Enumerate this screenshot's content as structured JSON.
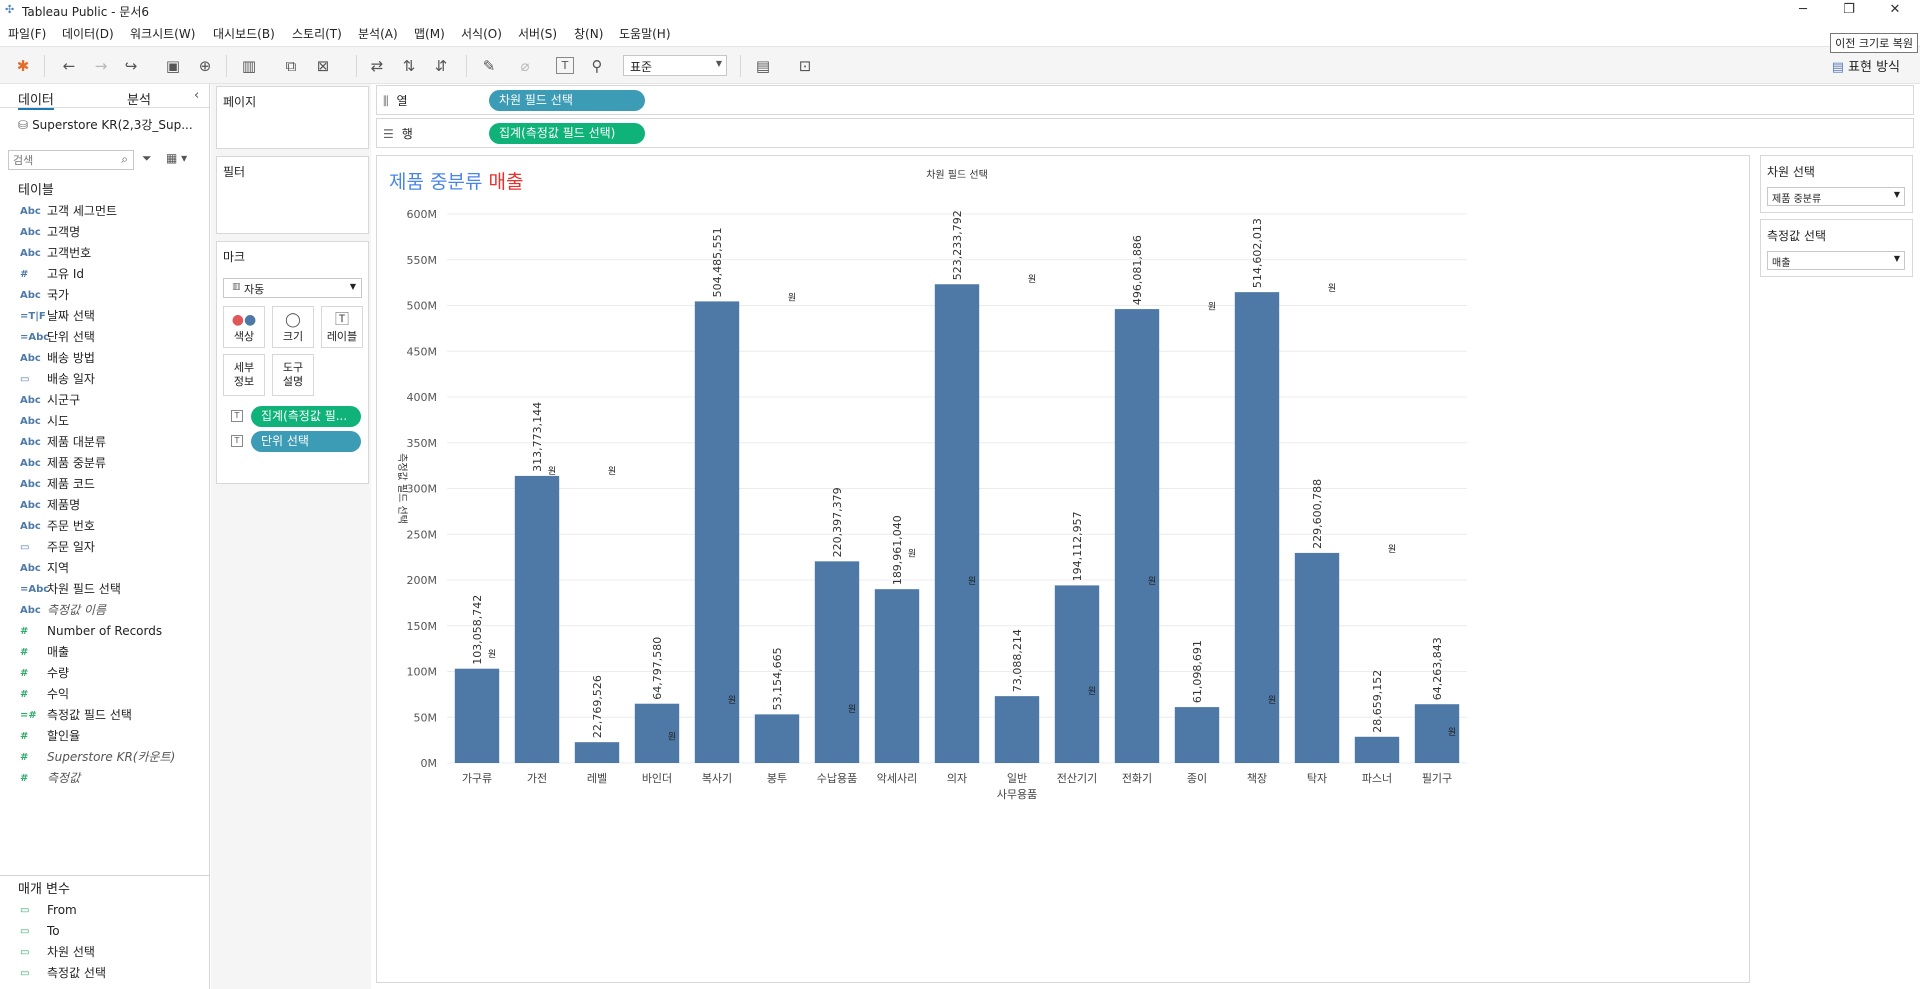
{
  "window": {
    "title": "Tableau Public - 문서6",
    "restore_tooltip": "이전 크기로 복원"
  },
  "menu": [
    "파일(F)",
    "데이터(D)",
    "워크시트(W)",
    "대시보드(B)",
    "스토리(T)",
    "분석(A)",
    "맵(M)",
    "서식(O)",
    "서버(S)",
    "창(N)",
    "도움말(H)"
  ],
  "toolbar": {
    "fit_select": "표준",
    "show_me": "표현 방식"
  },
  "left": {
    "tab_data": "데이터",
    "tab_analysis": "분석",
    "datasource": "Superstore KR(2,3강_Sup...",
    "search_placeholder": "검색",
    "tables_header": "테이블",
    "fields": [
      {
        "type": "Abc",
        "name": "고객 세그먼트",
        "kind": "dim"
      },
      {
        "type": "Abc",
        "name": "고객명",
        "kind": "dim"
      },
      {
        "type": "Abc",
        "name": "고객번호",
        "kind": "dim"
      },
      {
        "type": "#",
        "name": "고유 Id",
        "kind": "dim"
      },
      {
        "type": "Abc",
        "name": "국가",
        "kind": "dim"
      },
      {
        "type": "=T|F",
        "name": "날짜 선택",
        "kind": "dim"
      },
      {
        "type": "=Abc",
        "name": "단위 선택",
        "kind": "dim"
      },
      {
        "type": "Abc",
        "name": "배송 방법",
        "kind": "dim"
      },
      {
        "type": "▭",
        "name": "배송 일자",
        "kind": "dim"
      },
      {
        "type": "Abc",
        "name": "시군구",
        "kind": "dim"
      },
      {
        "type": "Abc",
        "name": "시도",
        "kind": "dim"
      },
      {
        "type": "Abc",
        "name": "제품 대분류",
        "kind": "dim"
      },
      {
        "type": "Abc",
        "name": "제품 중분류",
        "kind": "dim"
      },
      {
        "type": "Abc",
        "name": "제품 코드",
        "kind": "dim"
      },
      {
        "type": "Abc",
        "name": "제품명",
        "kind": "dim"
      },
      {
        "type": "Abc",
        "name": "주문 번호",
        "kind": "dim"
      },
      {
        "type": "▭",
        "name": "주문 일자",
        "kind": "dim"
      },
      {
        "type": "Abc",
        "name": "지역",
        "kind": "dim"
      },
      {
        "type": "=Abc",
        "name": "차원 필드 선택",
        "kind": "dim"
      },
      {
        "type": "Abc",
        "name": "측정값 이름",
        "kind": "dim",
        "italic": true
      },
      {
        "type": "#",
        "name": "Number of Records",
        "kind": "mea"
      },
      {
        "type": "#",
        "name": "매출",
        "kind": "mea"
      },
      {
        "type": "#",
        "name": "수량",
        "kind": "mea"
      },
      {
        "type": "#",
        "name": "수익",
        "kind": "mea"
      },
      {
        "type": "=#",
        "name": "측정값 필드 선택",
        "kind": "mea"
      },
      {
        "type": "#",
        "name": "할인율",
        "kind": "mea"
      },
      {
        "type": "#",
        "name": "Superstore KR(카운트)",
        "kind": "mea",
        "italic": true
      },
      {
        "type": "#",
        "name": "측정값",
        "kind": "mea",
        "italic": true
      }
    ],
    "params_header": "매개 변수",
    "params": [
      {
        "type": "▭",
        "name": "From"
      },
      {
        "type": "▭",
        "name": "To"
      },
      {
        "type": "▭",
        "name": "차원 선택"
      },
      {
        "type": "▭",
        "name": "측정값 선택"
      }
    ]
  },
  "cards": {
    "pages": "페이지",
    "filters": "필터",
    "marks": "마크",
    "mark_type": "자동",
    "color": "색상",
    "size": "크기",
    "label": "레이블",
    "detail": "세부\n정보",
    "tooltip": "도구\n설명",
    "pill_measure": "집계(측정값 필...",
    "pill_unit": "단위 선택"
  },
  "shelves": {
    "columns_label": "열",
    "rows_label": "행",
    "columns_pill": "차원 필드 선택",
    "rows_pill": "집계(측정값 필드 선택)"
  },
  "viz": {
    "title_a": "제품 중분류 ",
    "title_b": "매출"
  },
  "right": {
    "dim_label": "차원 선택",
    "dim_value": "제품 중분류",
    "measure_label": "측정값 선택",
    "measure_value": "매출"
  },
  "chart_data": {
    "type": "bar",
    "title": "차원 필드 선택",
    "xlabel": "",
    "ylabel": "측정값 필드 선택",
    "categories": [
      "가구류",
      "가전",
      "레벨",
      "바인더",
      "복사기",
      "봉투",
      "수납용품",
      "악세사리",
      "의자",
      "일반\n사무용품",
      "전산기기",
      "전화기",
      "종이",
      "책장",
      "탁자",
      "파스너",
      "필기구"
    ],
    "values": [
      103058742,
      313773144,
      22769526,
      64797580,
      504485551,
      53154665,
      220397379,
      189961040,
      523233792,
      73088214,
      194112957,
      496081886,
      61098691,
      514602013,
      229600788,
      28659152,
      64263843
    ],
    "labels": [
      "103,058,742",
      "313,773,144",
      "22,769,526",
      "64,797,580",
      "504,485,551",
      "53,154,665",
      "220,397,379",
      "189,961,040",
      "523,233,792",
      "73,088,214",
      "194,112,957",
      "496,081,886",
      "61,098,691",
      "514,602,013",
      "229,600,788",
      "28,659,152",
      "64,263,843"
    ],
    "unit_marker": "원",
    "unit_marker_values": [
      120000000,
      320000000,
      320000000,
      30000000,
      70000000,
      510000000,
      60000000,
      230000000,
      200000000,
      530000000,
      80000000,
      200000000,
      500000000,
      70000000,
      520000000,
      235000000,
      35000000
    ],
    "yticks": [
      "0M",
      "50M",
      "100M",
      "150M",
      "200M",
      "250M",
      "300M",
      "350M",
      "400M",
      "450M",
      "500M",
      "550M",
      "600M"
    ],
    "ylim": [
      0,
      600000000
    ],
    "bar_color": "#4e79a7",
    "grid": true
  }
}
